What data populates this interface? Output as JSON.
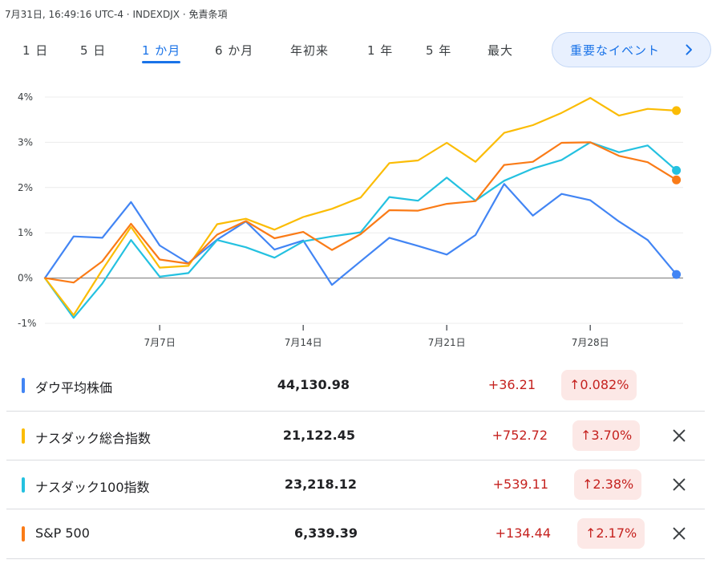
{
  "header": {
    "info": "7月31日, 16:49:16 UTC-4 · INDEXDJX · 免責条項"
  },
  "tabs": [
    {
      "label": "1 日",
      "active": false
    },
    {
      "label": "5 日",
      "active": false
    },
    {
      "label": "1 か月",
      "active": true
    },
    {
      "label": "6 か月",
      "active": false
    },
    {
      "label": "年初来",
      "active": false
    },
    {
      "label": "1 年",
      "active": false
    },
    {
      "label": "5 年",
      "active": false
    },
    {
      "label": "最大",
      "active": false
    }
  ],
  "events_button": {
    "label": "重要なイベント",
    "icon": "chevron-right-icon"
  },
  "chart_data": {
    "type": "line",
    "y_unit": "%",
    "y_ticks": [
      "4%",
      "3%",
      "2%",
      "1%",
      "0%",
      "-1%"
    ],
    "ylim": [
      -1,
      4
    ],
    "x_ticks": [
      {
        "label": "7月7日",
        "index": 4
      },
      {
        "label": "7月14日",
        "index": 9
      },
      {
        "label": "7月21日",
        "index": 14
      },
      {
        "label": "7月28日",
        "index": 19
      }
    ],
    "grid": true,
    "series": [
      {
        "name": "ダウ平均株価",
        "color": "#4285f4",
        "values": [
          0,
          0.92,
          0.89,
          1.68,
          0.72,
          0.33,
          0.85,
          1.25,
          0.63,
          0.83,
          -0.15,
          0.37,
          0.89,
          0.71,
          0.52,
          0.95,
          2.08,
          1.38,
          1.86,
          1.72,
          1.25,
          0.84,
          0.08
        ]
      },
      {
        "name": "ナスダック総合指数",
        "color": "#fbbc04",
        "values": [
          0,
          -0.82,
          0.18,
          1.13,
          0.23,
          0.27,
          1.19,
          1.31,
          1.07,
          1.35,
          1.53,
          1.78,
          2.54,
          2.6,
          2.99,
          2.57,
          3.21,
          3.38,
          3.65,
          3.98,
          3.59,
          3.74,
          3.7
        ]
      },
      {
        "name": "ナスダック100指数",
        "color": "#24c1e0",
        "values": [
          0,
          -0.88,
          -0.12,
          0.84,
          0.03,
          0.11,
          0.84,
          0.68,
          0.45,
          0.81,
          0.92,
          1.01,
          1.79,
          1.71,
          2.22,
          1.71,
          2.15,
          2.42,
          2.61,
          3.0,
          2.78,
          2.93,
          2.38
        ]
      },
      {
        "name": "S&P 500",
        "color": "#fa7b17",
        "values": [
          0,
          -0.1,
          0.37,
          1.2,
          0.41,
          0.32,
          0.96,
          1.26,
          0.88,
          1.02,
          0.62,
          0.97,
          1.5,
          1.49,
          1.64,
          1.7,
          2.5,
          2.57,
          2.99,
          3.0,
          2.7,
          2.56,
          2.17
        ]
      }
    ]
  },
  "rows": [
    {
      "name": "ダウ平均株価",
      "color": "#4285f4",
      "price": "44,130.98",
      "change": "+36.21",
      "percent": "↑0.082%",
      "removable": false
    },
    {
      "name": "ナスダック総合指数",
      "color": "#fbbc04",
      "price": "21,122.45",
      "change": "+752.72",
      "percent": "↑3.70%",
      "removable": true
    },
    {
      "name": "ナスダック100指数",
      "color": "#24c1e0",
      "price": "23,218.12",
      "change": "+539.11",
      "percent": "↑2.38%",
      "removable": true
    },
    {
      "name": "S&P 500",
      "color": "#fa7b17",
      "price": "6,339.39",
      "change": "+134.44",
      "percent": "↑2.17%",
      "removable": true
    }
  ]
}
